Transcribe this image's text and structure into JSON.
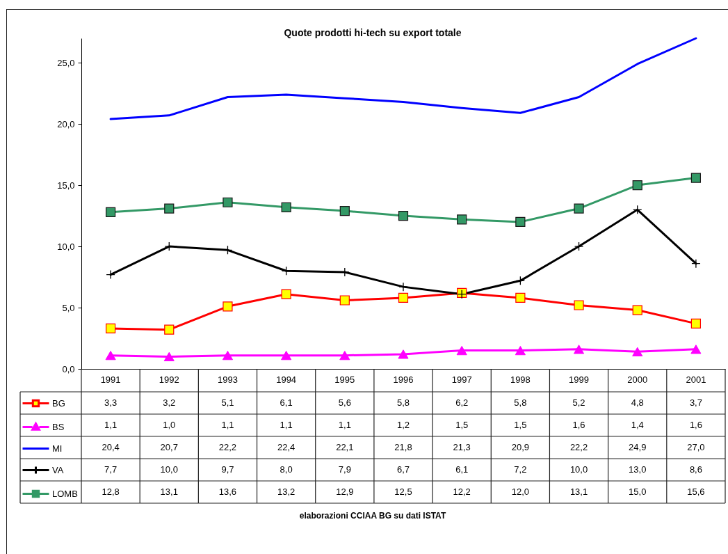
{
  "chart_data": {
    "type": "line",
    "title": "Quote prodotti hi-tech su export totale",
    "categories": [
      "1991",
      "1992",
      "1993",
      "1994",
      "1995",
      "1996",
      "1997",
      "1998",
      "1999",
      "2000",
      "2001"
    ],
    "series": [
      {
        "name": "BG",
        "color": "#ff0000",
        "marker": "square",
        "colors": [
          "#ffff00",
          "#ffff00",
          "#ffff00",
          "#ffff00",
          "#ffff00",
          "#ffff00",
          "#ffff00",
          "#ffff00",
          "#ffff00",
          "#ffff00",
          "#ffff00"
        ],
        "values": [
          3.3,
          3.2,
          5.1,
          6.1,
          5.6,
          5.8,
          6.2,
          5.8,
          5.2,
          4.8,
          3.7
        ],
        "value_labels": [
          "3,3",
          "3,2",
          "5,1",
          "6,1",
          "5,6",
          "5,8",
          "6,2",
          "5,8",
          "5,2",
          "4,8",
          "3,7"
        ]
      },
      {
        "name": "BS",
        "color": "#ff00ff",
        "marker": "triangle",
        "values": [
          1.1,
          1.0,
          1.1,
          1.1,
          1.1,
          1.2,
          1.5,
          1.5,
          1.6,
          1.4,
          1.6
        ],
        "value_labels": [
          "1,1",
          "1,0",
          "1,1",
          "1,1",
          "1,1",
          "1,2",
          "1,5",
          "1,5",
          "1,6",
          "1,4",
          "1,6"
        ]
      },
      {
        "name": "MI",
        "color": "#0000ff",
        "values": [
          20.4,
          20.7,
          22.2,
          22.4,
          22.1,
          21.8,
          21.3,
          20.9,
          22.2,
          24.9,
          27.0
        ],
        "value_labels": [
          "20,4",
          "20,7",
          "22,2",
          "22,4",
          "22,1",
          "21,8",
          "21,3",
          "20,9",
          "22,2",
          "24,9",
          "27,0"
        ]
      },
      {
        "name": "VA",
        "color": "#000000",
        "marker": "cross",
        "values": [
          7.7,
          10.0,
          9.7,
          8.0,
          7.9,
          6.7,
          6.1,
          7.2,
          10.0,
          13.0,
          8.6
        ],
        "value_labels": [
          "7,7",
          "10,0",
          "9,7",
          "8,0",
          "7,9",
          "6,7",
          "6,1",
          "7,2",
          "10,0",
          "13,0",
          "8,6"
        ]
      },
      {
        "name": "LOMB",
        "color": "#339966",
        "marker": "square",
        "values": [
          12.8,
          13.1,
          13.6,
          13.2,
          12.9,
          12.5,
          12.2,
          12.0,
          13.1,
          15.0,
          15.6
        ],
        "value_labels": [
          "12,8",
          "13,1",
          "13,6",
          "13,2",
          "12,9",
          "12,5",
          "12,2",
          "12,0",
          "13,1",
          "15,0",
          "15,6"
        ]
      }
    ],
    "ylim": [
      0,
      27
    ],
    "yticks": [
      {
        "value": 0,
        "label": "0,0"
      },
      {
        "value": 5,
        "label": "5,0"
      },
      {
        "value": 10,
        "label": "10,0"
      },
      {
        "value": 15,
        "label": "15,0"
      },
      {
        "value": 20,
        "label": "20,0"
      },
      {
        "value": 25,
        "label": "25,0"
      }
    ],
    "legend": "bottom left",
    "annotations": [
      "elaborazioni CCIAA BG su dati ISTAT"
    ]
  }
}
